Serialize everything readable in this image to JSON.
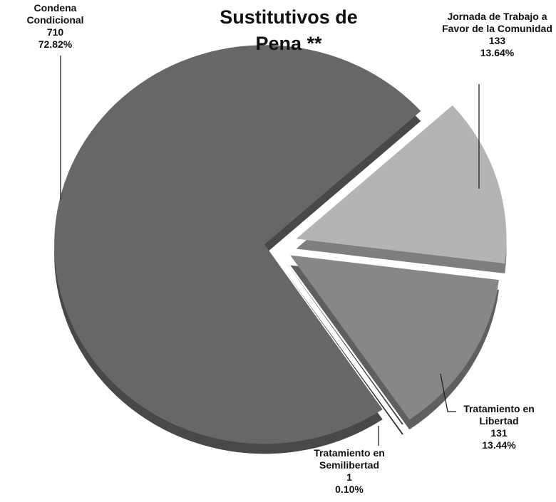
{
  "chart_data": {
    "type": "pie",
    "title": "Sustitutivos de Pena **",
    "categories": [
      "Jornada de Trabajo a Favor de la Comunidad",
      "Tratamiento en Libertad",
      "Tratamiento en Semilibertad",
      "Condena Condicional"
    ],
    "values": [
      133,
      131,
      1,
      710
    ],
    "percent_labels": [
      "13.64%",
      "13.44%",
      "0.10%",
      "72.82%"
    ],
    "colors": [
      "#b4b4b4",
      "#878787",
      "#3c3c3c",
      "#676767"
    ]
  }
}
